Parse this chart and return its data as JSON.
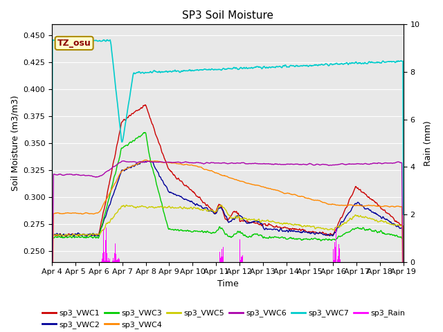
{
  "title": "SP3 Soil Moisture",
  "xlabel": "Time",
  "ylabel_left": "Soil Moisture (m3/m3)",
  "ylabel_right": "Rain (mm)",
  "ylim_left": [
    0.24,
    0.46
  ],
  "ylim_right": [
    0.0,
    10.0
  ],
  "colors": {
    "VWC1": "#cc0000",
    "VWC2": "#000099",
    "VWC3": "#00cc00",
    "VWC4": "#ff8800",
    "VWC5": "#cccc00",
    "VWC6": "#aa00aa",
    "VWC7": "#00cccc",
    "Rain": "#ff00ff"
  },
  "tz_label": "TZ_osu",
  "bg_color": "#e8e8e8",
  "title_fontsize": 11,
  "axis_fontsize": 9,
  "tick_fontsize": 8
}
